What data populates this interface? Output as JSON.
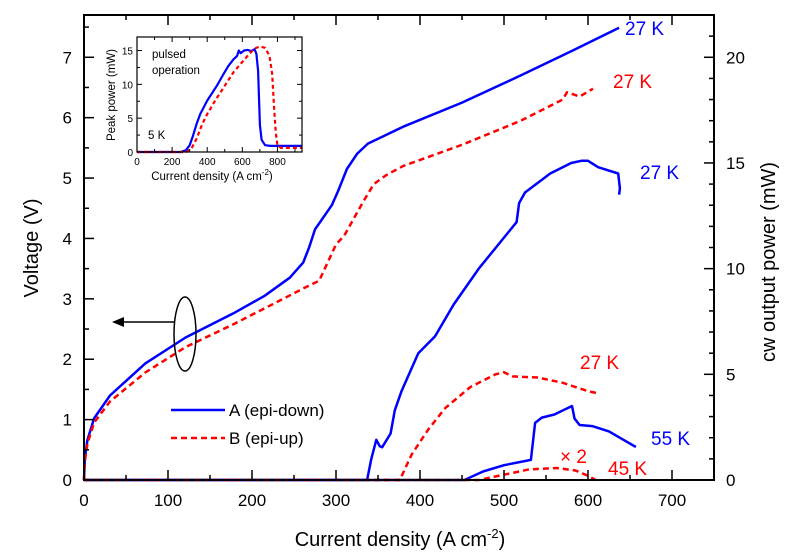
{
  "chart_data": [
    {
      "id": "main",
      "type": "line",
      "title": "",
      "xlabel": "Current density (A cm",
      "xlabel_sup": "-2",
      "xlabel_end": ")",
      "ylabel_left": "Voltage (V)",
      "ylabel_right": "cw output power (mW)",
      "xlim": [
        0,
        750
      ],
      "ylim_left": [
        0,
        7.7
      ],
      "ylim_right": [
        0,
        22
      ],
      "xticks": [
        0,
        100,
        200,
        300,
        400,
        500,
        600,
        700
      ],
      "yticks_left": [
        0,
        1,
        2,
        3,
        4,
        5,
        6,
        7
      ],
      "yticks_right": [
        0,
        5,
        10,
        15,
        20
      ],
      "grid": false,
      "legend": {
        "placement": "lower-left",
        "entries": [
          {
            "label": "A (epi-down)",
            "color": "#0000ff",
            "style": "solid"
          },
          {
            "label": "B (epi-up)",
            "color": "#ff0000",
            "style": "dashed"
          }
        ]
      },
      "series": [
        {
          "name": "A voltage 27 K",
          "axis": "left",
          "color": "#0000ff",
          "style": "solid",
          "x": [
            0,
            1,
            4,
            12,
            31,
            73,
            121,
            178,
            215,
            245,
            261,
            268,
            275,
            285,
            295,
            303,
            313,
            325,
            338,
            380,
            450,
            520,
            580,
            637
          ],
          "y": [
            0,
            0.35,
            0.66,
            1.02,
            1.4,
            1.93,
            2.36,
            2.76,
            3.05,
            3.35,
            3.6,
            3.85,
            4.15,
            4.35,
            4.55,
            4.8,
            5.15,
            5.4,
            5.57,
            5.85,
            6.25,
            6.7,
            7.1,
            7.49
          ]
        },
        {
          "name": "B voltage 27 K",
          "axis": "left",
          "color": "#ff0000",
          "style": "dashed",
          "x": [
            0,
            1,
            4,
            12,
            31,
            73,
            121,
            178,
            230,
            262,
            280,
            290,
            300,
            310,
            320,
            332,
            345,
            360,
            380,
            450,
            520,
            570,
            575,
            590,
            600,
            606
          ],
          "y": [
            0,
            0.3,
            0.6,
            0.95,
            1.3,
            1.78,
            2.2,
            2.58,
            2.95,
            3.18,
            3.3,
            3.6,
            3.9,
            4.05,
            4.3,
            4.6,
            4.9,
            5.05,
            5.2,
            5.55,
            5.95,
            6.3,
            6.42,
            6.35,
            6.43,
            6.48
          ]
        },
        {
          "name": "A power 27 K",
          "axis": "right",
          "color": "#0000ff",
          "style": "solid",
          "x": [
            0,
            337,
            342,
            348,
            352,
            355,
            365,
            370,
            378,
            398,
            418,
            440,
            470,
            515,
            518,
            525,
            555,
            580,
            592,
            600,
            612,
            636,
            638,
            637
          ],
          "y": [
            0,
            0,
            1.0,
            1.9,
            1.6,
            1.55,
            2.2,
            3.3,
            4.2,
            6.0,
            6.8,
            8.3,
            10.0,
            12.2,
            13.1,
            13.6,
            14.5,
            15.0,
            15.1,
            15.1,
            14.8,
            14.5,
            13.8,
            13.5
          ]
        },
        {
          "name": "B power 27 K",
          "axis": "right",
          "color": "#ff0000",
          "style": "dashed",
          "x": [
            0,
            376,
            390,
            410,
            430,
            460,
            490,
            500,
            510,
            540,
            570,
            600,
            612
          ],
          "y": [
            0,
            0,
            1.2,
            2.4,
            3.4,
            4.4,
            5.0,
            5.1,
            4.9,
            4.85,
            4.6,
            4.2,
            4.1
          ]
        },
        {
          "name": "A power 55 K",
          "axis": "right",
          "color": "#0000ff",
          "style": "solid",
          "x": [
            0,
            453,
            475,
            500,
            532,
            537,
            545,
            560,
            581,
            584,
            590,
            605,
            625,
            657
          ],
          "y": [
            0,
            0,
            0.4,
            0.7,
            0.95,
            2.7,
            2.95,
            3.1,
            3.5,
            2.9,
            2.6,
            2.55,
            2.3,
            1.56
          ]
        },
        {
          "name": "B power 45 K (x2)",
          "axis": "right",
          "color": "#ff0000",
          "style": "dashed",
          "x": [
            0,
            470,
            500,
            530,
            563,
            585,
            600,
            609
          ],
          "y": [
            0,
            0,
            0.25,
            0.5,
            0.57,
            0.45,
            0.2,
            0.0
          ]
        }
      ],
      "annotations": [
        {
          "text": "27 K",
          "color": "#0000ff",
          "target": "A voltage"
        },
        {
          "text": "27 K",
          "color": "#ff0000",
          "target": "B voltage"
        },
        {
          "text": "27 K",
          "color": "#0000ff",
          "target": "A power 27 K"
        },
        {
          "text": "27 K",
          "color": "#ff0000",
          "target": "B power 27 K"
        },
        {
          "text": "55 K",
          "color": "#0000ff",
          "target": "A power 55 K"
        },
        {
          "text": "45 K",
          "color": "#ff0000",
          "target": "B power 45 K"
        },
        {
          "text": "× 2",
          "color": "#ff0000",
          "target": "B power 45 K scale"
        }
      ]
    },
    {
      "id": "inset",
      "type": "line",
      "title": "pulsed operation",
      "title_lines": [
        "pulsed",
        "operation"
      ],
      "temp_label": "5 K",
      "xlabel": "Current density (A cm",
      "xlabel_sup": "-2",
      "xlabel_end": ")",
      "ylabel": "Peak power (mW)",
      "xlim": [
        0,
        940
      ],
      "ylim": [
        0,
        17
      ],
      "xticks": [
        0,
        200,
        400,
        600,
        800
      ],
      "yticks": [
        0,
        5,
        10,
        15
      ],
      "grid": false,
      "series": [
        {
          "name": "A pulsed",
          "color": "#0000ff",
          "style": "solid",
          "x": [
            0,
            250,
            280,
            300,
            320,
            340,
            360,
            380,
            400,
            430,
            460,
            490,
            520,
            550,
            570,
            580,
            590,
            610,
            630,
            650,
            670,
            680,
            690,
            695,
            700,
            710,
            730,
            760,
            800,
            860,
            940
          ],
          "y": [
            0,
            0,
            0.3,
            1.0,
            2.5,
            4.2,
            5.6,
            6.6,
            7.6,
            8.8,
            10.0,
            11.4,
            12.7,
            13.7,
            14.2,
            15.0,
            14.6,
            15.0,
            15.1,
            14.9,
            15.2,
            14.5,
            12.0,
            8.0,
            4.0,
            1.8,
            1.0,
            0.9,
            0.9,
            0.9,
            0.9
          ]
        },
        {
          "name": "B pulsed",
          "color": "#ff0000",
          "style": "dashed",
          "x": [
            0,
            280,
            310,
            340,
            370,
            400,
            450,
            500,
            550,
            600,
            640,
            670,
            700,
            730,
            755,
            770,
            780,
            790,
            800,
            820,
            860,
            940
          ],
          "y": [
            0,
            0,
            0.5,
            2.0,
            4.0,
            5.6,
            7.8,
            9.8,
            11.8,
            13.3,
            14.5,
            15.3,
            15.6,
            15.4,
            14.2,
            11.5,
            7.0,
            3.0,
            1.0,
            0.6,
            0.6,
            0.6
          ]
        }
      ]
    }
  ]
}
